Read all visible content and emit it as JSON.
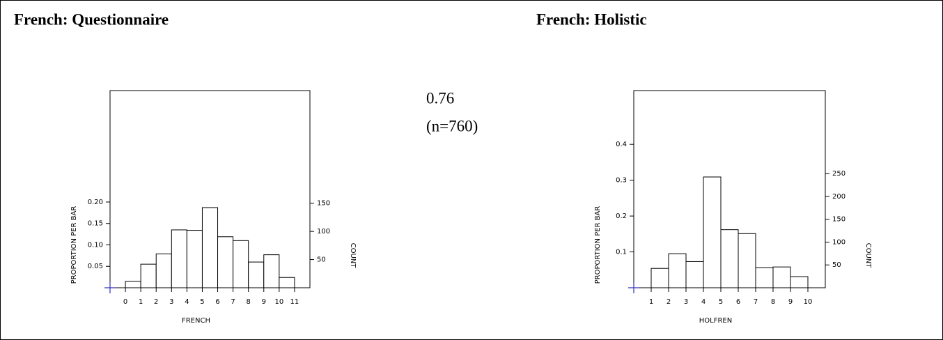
{
  "annotation": [
    "0.76",
    "(n=760)"
  ],
  "chart_data": [
    {
      "type": "histogram",
      "title": "French: Questionnaire",
      "xlabel": "FRENCH",
      "ylabel": "PROPORTION PER BAR",
      "y2label": "COUNT",
      "bins": [
        0,
        1,
        2,
        3,
        4,
        5,
        6,
        7,
        8,
        9,
        10,
        11
      ],
      "values": [
        0.015,
        0.055,
        0.079,
        0.135,
        0.134,
        0.187,
        0.119,
        0.11,
        0.06,
        0.077,
        0.024
      ],
      "xlim": [
        -1,
        12
      ],
      "xticks": [
        0,
        1,
        2,
        3,
        4,
        5,
        6,
        7,
        8,
        9,
        10,
        11
      ],
      "ylim": [
        0,
        0.46
      ],
      "yticks": [
        0.05,
        {
          "value": 0.1,
          "label": "0.10"
        },
        0.15,
        {
          "value": 0.2,
          "label": "0.20"
        }
      ],
      "y2lim": [
        0,
        350
      ],
      "y2ticks": [
        50,
        100,
        150
      ],
      "color": "#ffffff"
    },
    {
      "type": "histogram",
      "title": "French: Holistic",
      "xlabel": "HOLFREN",
      "ylabel": "PROPORTION PER BAR",
      "y2label": "COUNT",
      "bins": [
        1,
        2,
        3,
        4,
        5,
        6,
        7,
        8,
        9,
        10
      ],
      "values": [
        0.054,
        0.095,
        0.073,
        0.309,
        0.162,
        0.151,
        0.056,
        0.058,
        0.031
      ],
      "xlim": [
        0,
        11
      ],
      "xticks": [
        1,
        2,
        3,
        4,
        5,
        6,
        7,
        8,
        9,
        10
      ],
      "ylim": [
        0,
        0.55
      ],
      "yticks": [
        0.1,
        0.2,
        0.3,
        0.4
      ],
      "y2lim": [
        0,
        432
      ],
      "y2ticks": [
        50,
        100,
        150,
        200,
        250
      ],
      "color": "#ffffff"
    }
  ]
}
